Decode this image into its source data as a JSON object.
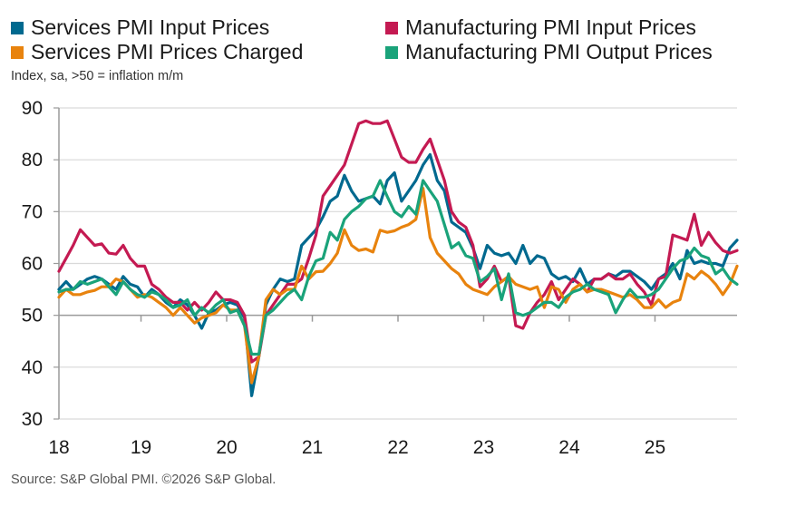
{
  "chart_data": {
    "type": "line",
    "subtitle": "Index, sa, >50 = inflation m/m",
    "source": "Source: S&P Global PMI. ©2026 S&P Global.",
    "ylim": [
      30,
      90
    ],
    "yticks": [
      30,
      40,
      50,
      60,
      70,
      80,
      90
    ],
    "x_start": "2018-01",
    "x_end": "2025-12",
    "frequency": "monthly",
    "xtick_labels": [
      "18",
      "19",
      "20",
      "21",
      "22",
      "23",
      "24",
      "25"
    ],
    "x_axis_crosses_at": 50,
    "grid": "horizontal",
    "legend_placement": "top",
    "series": [
      {
        "name": "Services PMI Input Prices",
        "color": "#00698f",
        "values": [
          55,
          56.5,
          55,
          56,
          57,
          57.5,
          57,
          56,
          55,
          57.5,
          56,
          55.5,
          53.5,
          55,
          54,
          52.5,
          51.5,
          53,
          52,
          50,
          47.5,
          50.5,
          51,
          52,
          52.5,
          52,
          49.5,
          34.5,
          42,
          52,
          55,
          57,
          56.5,
          57,
          63.5,
          65,
          66.5,
          69,
          72,
          73,
          77,
          74,
          72,
          72.5,
          73,
          71.5,
          76,
          77.5,
          72,
          74,
          76,
          79,
          81,
          76,
          74,
          68,
          67,
          66,
          63,
          59,
          63.5,
          62,
          61.5,
          62,
          60,
          63.5,
          60,
          61.5,
          61,
          58,
          57,
          57.5,
          56.5,
          59,
          56,
          57,
          57,
          58,
          57.5,
          58.5,
          58.5,
          57.5,
          56.5,
          55,
          57,
          58,
          60,
          57,
          62.5,
          60,
          60.5,
          60,
          60,
          59.5,
          63,
          64.5
        ]
      },
      {
        "name": "Manufacturing PMI Input Prices",
        "color": "#c41a52",
        "values": [
          58.5,
          61,
          63.5,
          66.5,
          65,
          63.5,
          63.8,
          62,
          61.8,
          63.5,
          61,
          59.5,
          59.5,
          56,
          55,
          53.5,
          52.5,
          52.5,
          51,
          52.5,
          51,
          52.5,
          54.5,
          53,
          53,
          52.5,
          50,
          41,
          42,
          50,
          52,
          54,
          56,
          56,
          57,
          61,
          65.5,
          73,
          75,
          77,
          79,
          83,
          87,
          87.5,
          87,
          87,
          87.5,
          84,
          80.5,
          79.5,
          79.5,
          82,
          84,
          80,
          76,
          70,
          68,
          67,
          63.5,
          55.5,
          57,
          59.5,
          56.5,
          57.5,
          48,
          47.5,
          50.5,
          52.5,
          54,
          56.5,
          53,
          55,
          57,
          56,
          54.5,
          57,
          57,
          58,
          57,
          57,
          58,
          56,
          54.5,
          52,
          57,
          57.5,
          65.5,
          65,
          64.5,
          69.5,
          63.5,
          66,
          64,
          62.5,
          62,
          62.5
        ]
      },
      {
        "name": "Services PMI Prices Charged",
        "color": "#e8830e",
        "values": [
          53.5,
          55,
          54,
          54,
          54.5,
          54.8,
          55.5,
          55.5,
          57,
          56.5,
          55,
          53.5,
          54,
          53.5,
          52.5,
          51.5,
          50,
          51.5,
          50,
          48.5,
          49.5,
          50,
          50.5,
          52,
          51,
          51,
          48,
          37,
          42,
          53,
          55,
          54,
          55,
          55,
          59.5,
          57,
          58.4,
          58.5,
          60,
          62,
          66.5,
          63.5,
          62.5,
          62.8,
          62.2,
          66.4,
          66,
          66.3,
          67,
          67.5,
          68.5,
          74.5,
          65,
          62,
          60.5,
          59,
          58,
          56,
          55,
          54.5,
          54,
          55.5,
          56.5,
          57.5,
          56,
          55.5,
          55,
          55.5,
          51.5,
          55.5,
          55,
          52.5,
          55,
          56,
          54.5,
          55,
          55,
          54.5,
          54,
          53.5,
          54,
          53,
          51.5,
          51.5,
          53,
          51.5,
          52.5,
          53,
          58,
          57,
          58.5,
          57.5,
          56,
          54,
          56,
          59.5
        ]
      },
      {
        "name": "Manufacturing PMI Output Prices",
        "color": "#1aa37a",
        "values": [
          54.5,
          55,
          55,
          56.5,
          56,
          56.5,
          57,
          55.5,
          54,
          56.5,
          55,
          54,
          53.5,
          54.5,
          54,
          53,
          51.5,
          52,
          53,
          50,
          51.5,
          50.5,
          52,
          53,
          50.5,
          51,
          48,
          42.5,
          42.5,
          50,
          51,
          52.5,
          54,
          55,
          53,
          57.5,
          60.5,
          61,
          66,
          64.5,
          68.5,
          70,
          71,
          72.5,
          73,
          76,
          72.9,
          70,
          69,
          71,
          69.5,
          76,
          74,
          72,
          67.5,
          63,
          64,
          61.5,
          61,
          56.5,
          57.5,
          59,
          53,
          58,
          50.5,
          50,
          50.5,
          51.5,
          52.5,
          52.5,
          51.5,
          53.5,
          54.5,
          55,
          56,
          55,
          54.5,
          54,
          50.5,
          53,
          55,
          53.5,
          53.5,
          54,
          55,
          57,
          59,
          60.5,
          61,
          63,
          61.5,
          61,
          58,
          59,
          57,
          56
        ]
      }
    ]
  }
}
